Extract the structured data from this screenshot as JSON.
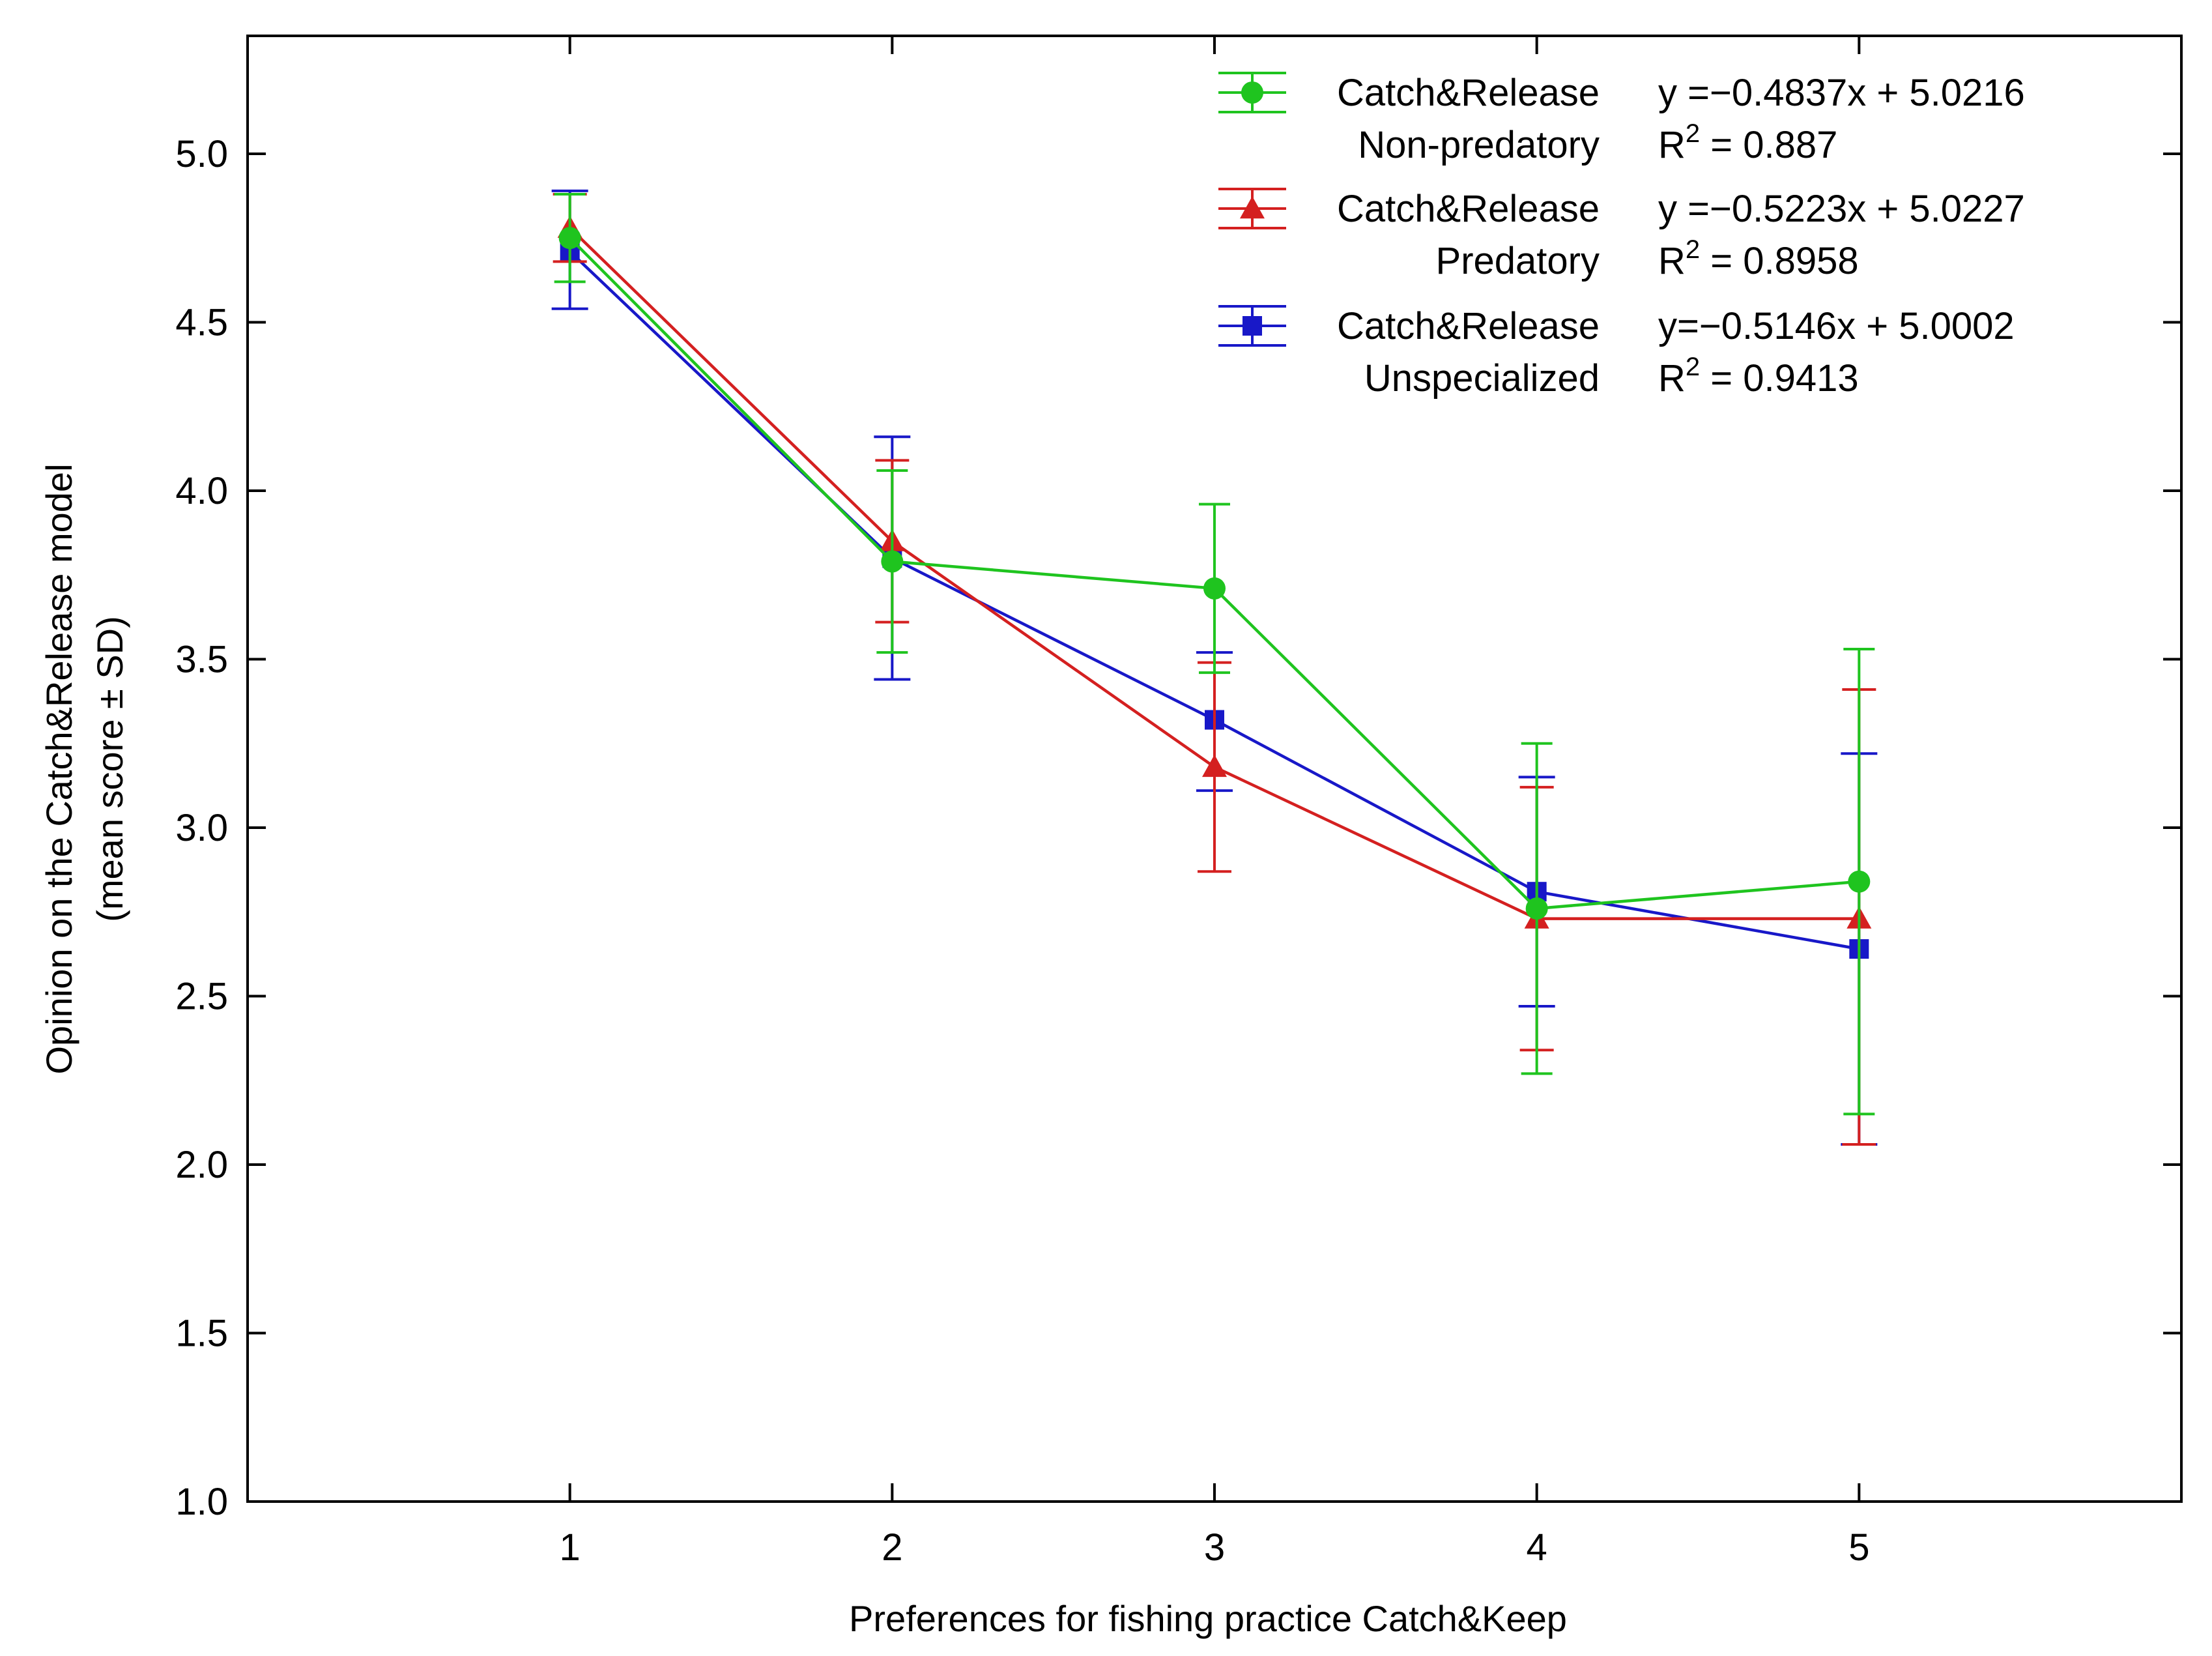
{
  "chart_data": {
    "type": "line",
    "xlabel": "Preferences for fishing practice Catch&Keep",
    "ylabel_line1": "Opinion on the Catch&Release model",
    "ylabel_line2": "(mean score ± SD)",
    "x_ticks": [
      "1",
      "2",
      "3",
      "4",
      "5"
    ],
    "y_ticks": [
      "1.0",
      "1.5",
      "2.0",
      "2.5",
      "3.0",
      "3.5",
      "4.0",
      "4.5",
      "5.0"
    ],
    "xlim": [
      0,
      6
    ],
    "ylim": [
      1.0,
      5.35
    ],
    "categories": [
      1,
      2,
      3,
      4,
      5
    ],
    "series": [
      {
        "name": "Catch&Release",
        "subname": "Non-predatory",
        "equation": "y =−0.4837x + 5.0216",
        "r2_prefix": "R",
        "r2_sup": "2",
        "r2_value": " = 0.887",
        "color": "#1fc41f",
        "marker": "circle",
        "values": [
          4.75,
          3.79,
          3.71,
          2.76,
          2.84
        ],
        "upper": [
          4.88,
          4.06,
          3.96,
          3.25,
          3.53
        ],
        "lower": [
          4.62,
          3.52,
          3.46,
          2.27,
          2.15
        ]
      },
      {
        "name": "Catch&Release",
        "subname": "Predatory",
        "equation": "y =−0.5223x + 5.0227",
        "r2_prefix": "R",
        "r2_sup": "2",
        "r2_value": " = 0.8958",
        "color": "#d42020",
        "marker": "triangle",
        "values": [
          4.78,
          3.85,
          3.18,
          2.73,
          2.73
        ],
        "upper": [
          4.88,
          4.09,
          3.49,
          3.12,
          3.41
        ],
        "lower": [
          4.68,
          3.61,
          2.87,
          2.34,
          2.06
        ]
      },
      {
        "name": "Catch&Release",
        "subname": "Unspecialized",
        "equation": "y=−0.5146x + 5.0002",
        "r2_prefix": "R",
        "r2_sup": "2",
        "r2_value": " = 0.9413",
        "color": "#1818c8",
        "marker": "square",
        "values": [
          4.71,
          3.8,
          3.32,
          2.81,
          2.64
        ],
        "upper": [
          4.89,
          4.16,
          3.52,
          3.15,
          3.22
        ],
        "lower": [
          4.54,
          3.44,
          3.11,
          2.47,
          2.06
        ]
      }
    ]
  }
}
